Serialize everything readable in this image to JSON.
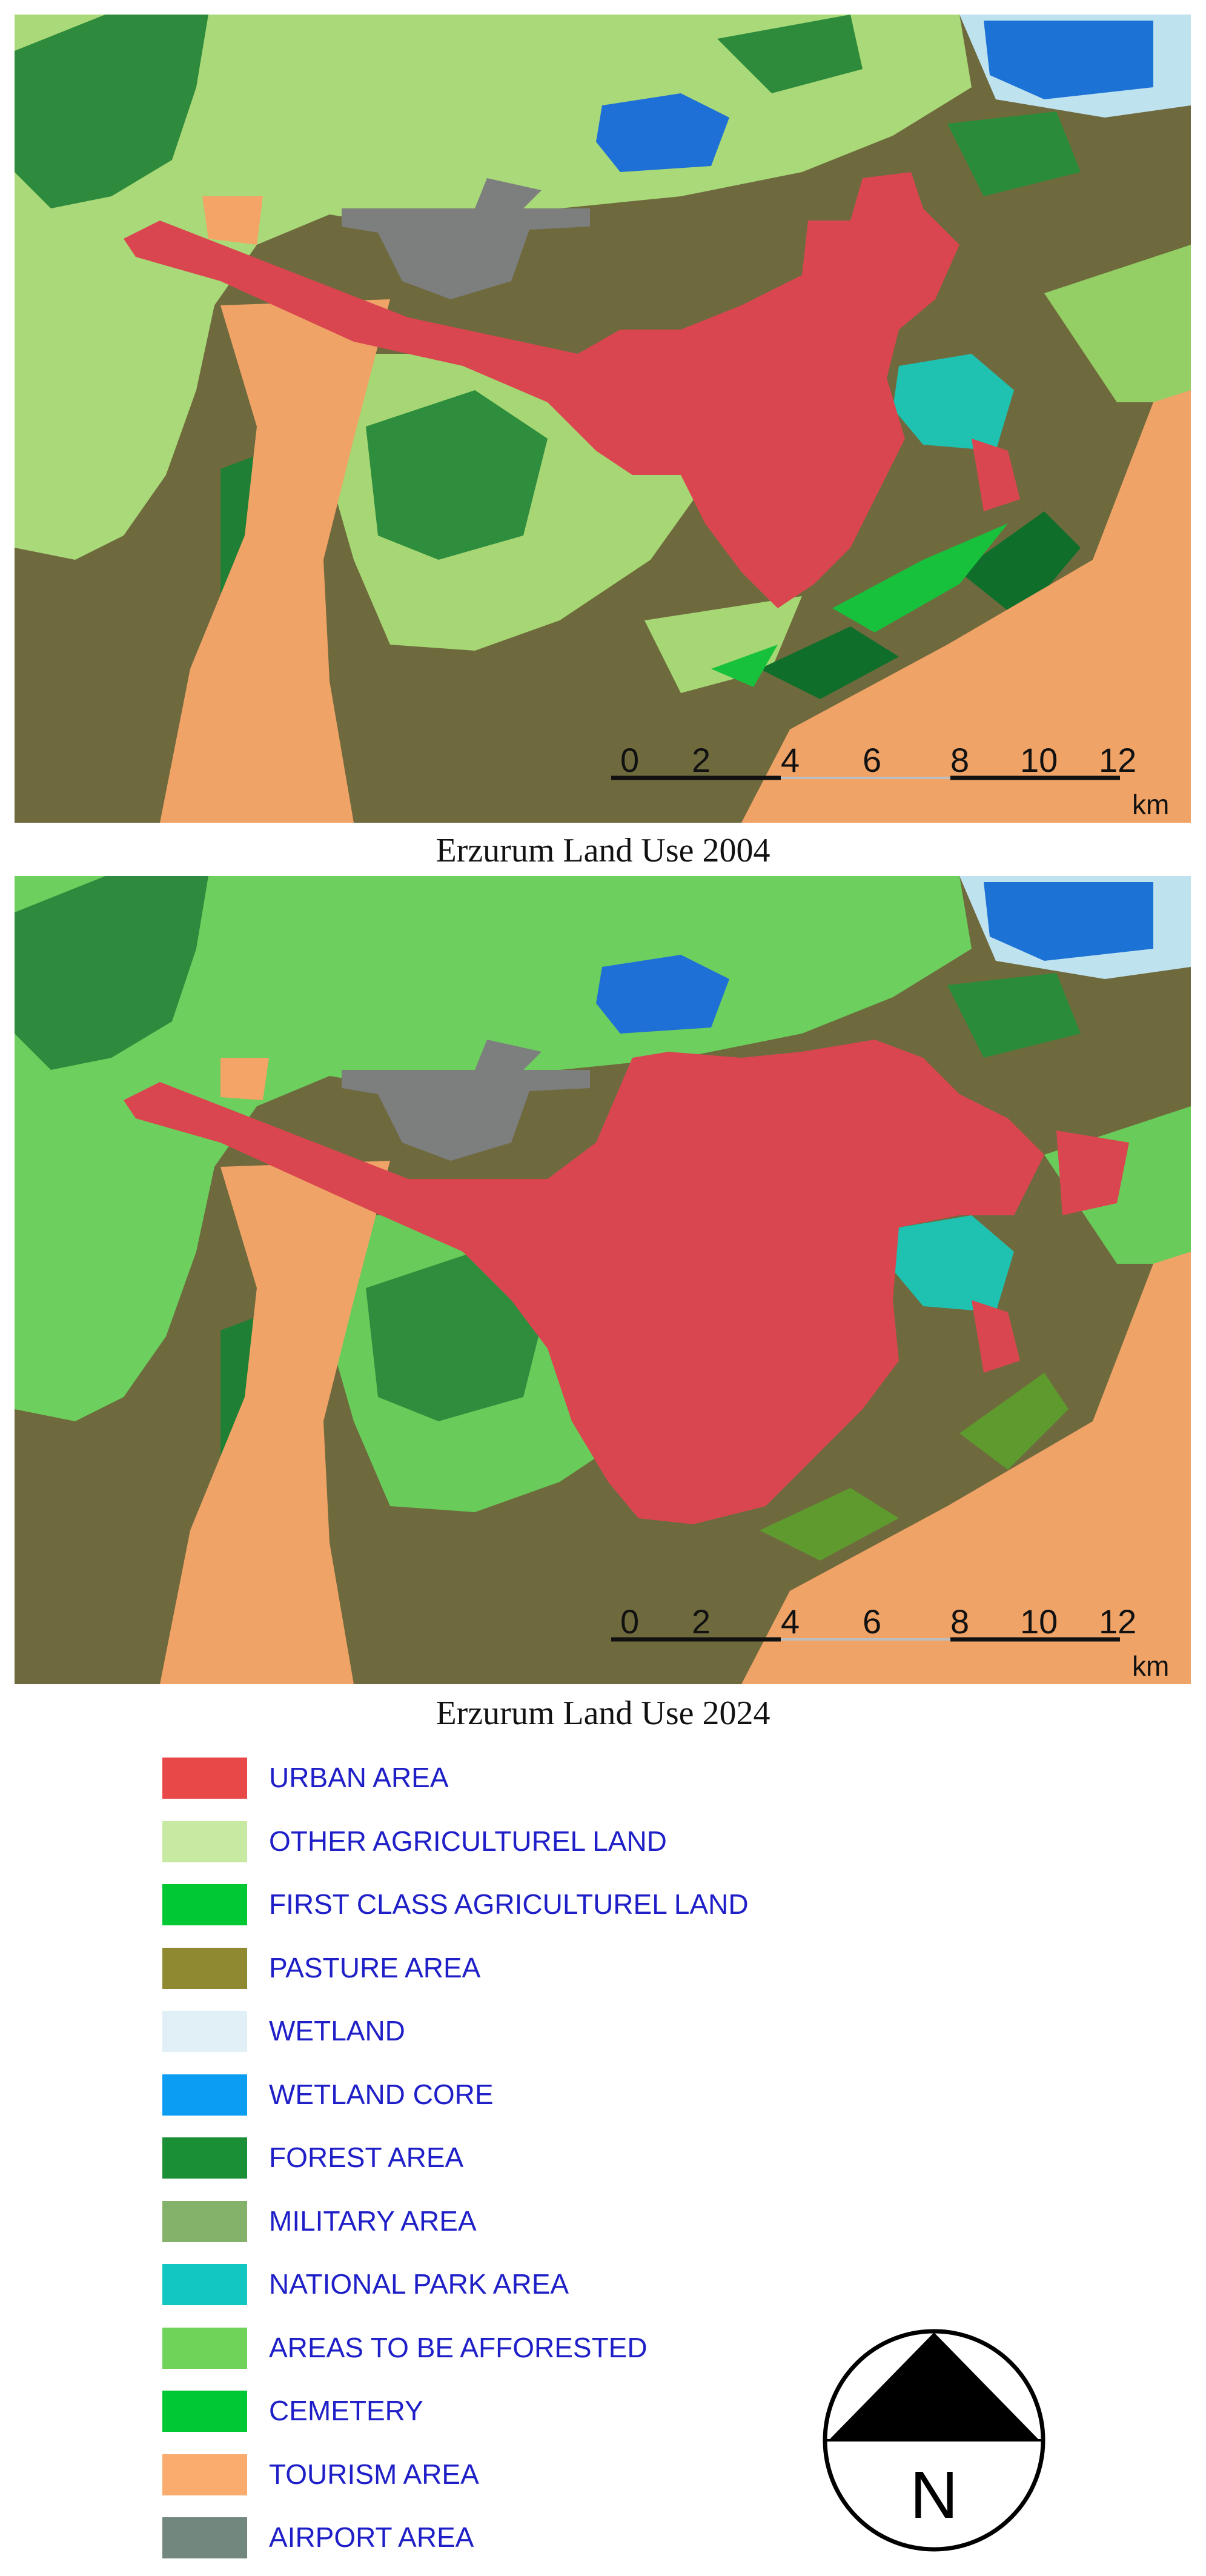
{
  "maps": [
    {
      "caption": "Erzurum Land Use 2004",
      "scale_ticks": [
        "0",
        "2",
        "4",
        "6",
        "8",
        "10",
        "12"
      ],
      "scale_unit": "km"
    },
    {
      "caption": "Erzurum Land Use 2024",
      "scale_ticks": [
        "0",
        "2",
        "4",
        "6",
        "8",
        "10",
        "12"
      ],
      "scale_unit": "km"
    }
  ],
  "legend": {
    "items": [
      {
        "label": "URBAN AREA",
        "color": "#e84848"
      },
      {
        "label": "OTHER AGRICULTUREL LAND",
        "color": "#c7e9a2"
      },
      {
        "label": "FIRST CLASS AGRICULTUREL LAND",
        "color": "#00c832"
      },
      {
        "label": "PASTURE AREA",
        "color": "#8f8a32"
      },
      {
        "label": "WETLAND",
        "color": "#e1f0f6"
      },
      {
        "label": "WETLAND CORE",
        "color": "#0b9df1"
      },
      {
        "label": "FOREST AREA",
        "color": "#1a8f35"
      },
      {
        "label": "MILITARY AREA",
        "color": "#84b26a"
      },
      {
        "label": "NATIONAL PARK AREA",
        "color": "#12c7c2"
      },
      {
        "label": "AREAS TO BE AFFORESTED",
        "color": "#6fd259"
      },
      {
        "label": "CEMETERY",
        "color": "#00c832"
      },
      {
        "label": "TOURISM AREA",
        "color": "#f9ac6e"
      },
      {
        "label": "AIRPORT AREA",
        "color": "#72887e"
      }
    ]
  },
  "north_arrow": {
    "label": "N"
  }
}
